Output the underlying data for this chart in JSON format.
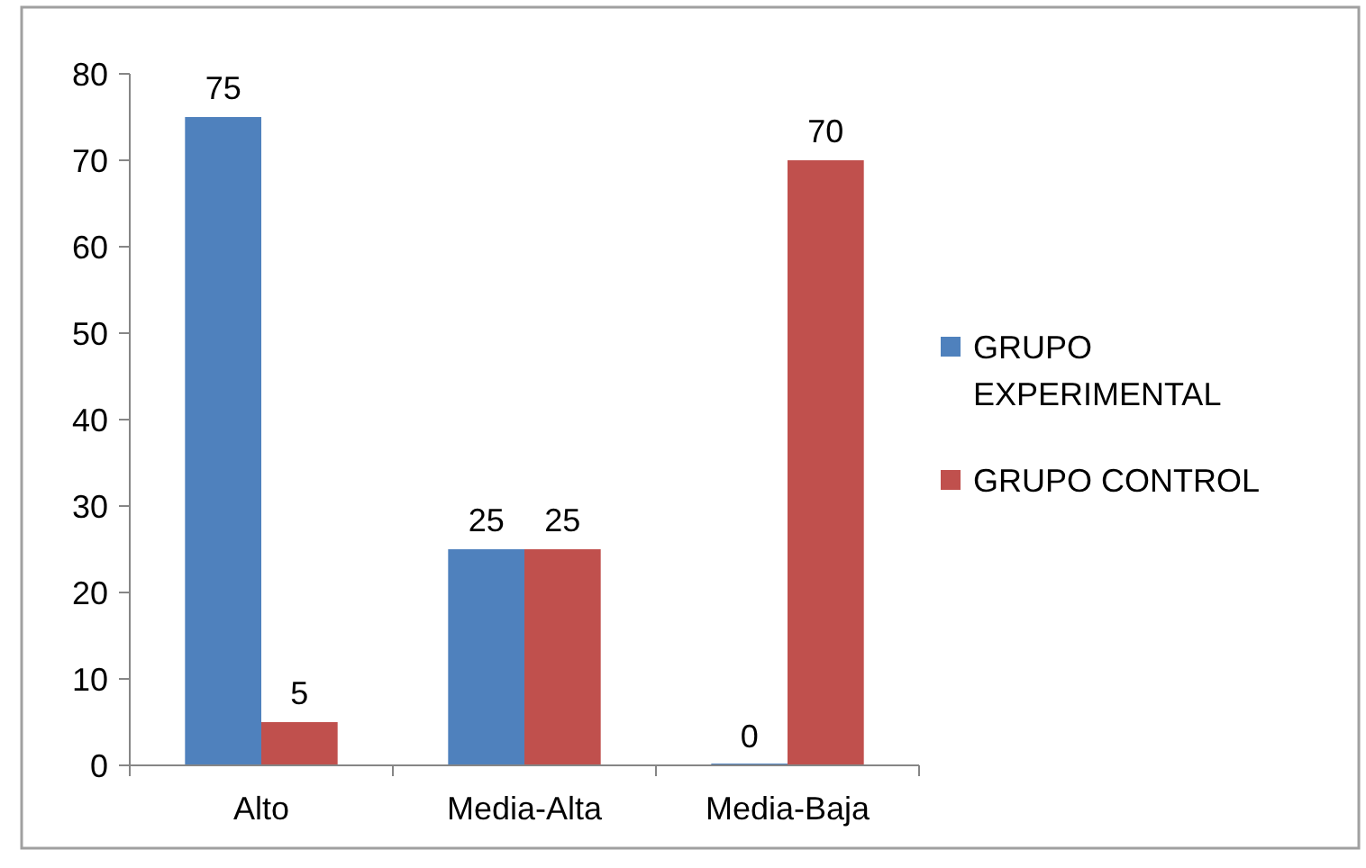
{
  "chart_data": {
    "type": "bar",
    "categories": [
      "Alto",
      "Media-Alta",
      "Media-Baja"
    ],
    "series": [
      {
        "name": "GRUPO EXPERIMENTAL",
        "color": "#4f81bd",
        "values": [
          75,
          25,
          0
        ]
      },
      {
        "name": "GRUPO CONTROL",
        "color": "#c0504d",
        "values": [
          5,
          25,
          70
        ]
      }
    ],
    "ylim": [
      0,
      80
    ],
    "yticks": [
      0,
      10,
      20,
      30,
      40,
      50,
      60,
      70,
      80
    ],
    "grid": false,
    "legend": "right",
    "data_labels": true
  }
}
